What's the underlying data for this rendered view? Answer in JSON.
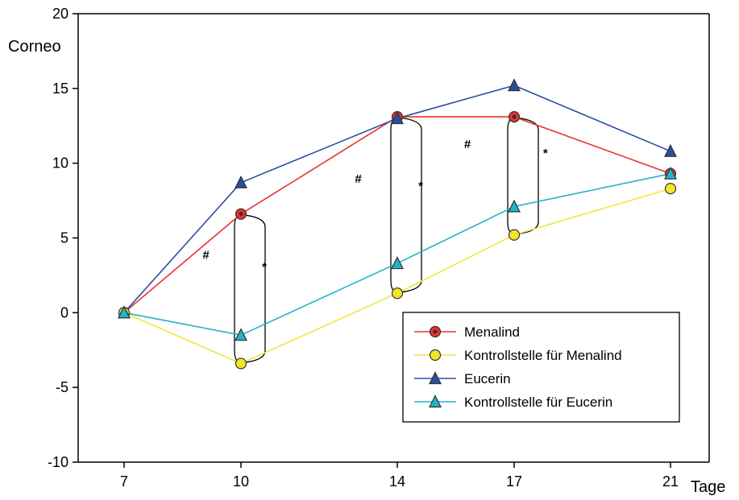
{
  "chart_data": {
    "type": "line",
    "ylabel": "Corneo",
    "xlabel": "Tage",
    "x": [
      7,
      10,
      14,
      17,
      21
    ],
    "xticks": [
      "7",
      "10",
      "14",
      "17",
      "21"
    ],
    "ylim": [
      -10,
      20
    ],
    "yticks": [
      "-10",
      "-5",
      "0",
      "5",
      "10",
      "15",
      "20"
    ],
    "grid": false,
    "legend_position": "bottom-right",
    "series": [
      {
        "name": "Menalind",
        "values": [
          0,
          6.6,
          13.1,
          13.1,
          9.3
        ],
        "color": "#e8322f",
        "marker": "circle-dot",
        "fill": "#e8322f"
      },
      {
        "name": "Kontrollstelle für Menalind",
        "values": [
          0,
          -3.4,
          1.3,
          5.2,
          8.3
        ],
        "color": "#f0e63c",
        "marker": "circle",
        "fill": "#f2e52b"
      },
      {
        "name": "Eucerin",
        "values": [
          0,
          8.7,
          13.0,
          15.2,
          10.8
        ],
        "color": "#2a4fa0",
        "marker": "triangle",
        "fill": "#2a4fa0"
      },
      {
        "name": "Kontrollstelle für Eucerin",
        "values": [
          0,
          -1.5,
          3.3,
          7.1,
          9.3
        ],
        "color": "#22b3c7",
        "marker": "triangle",
        "fill": "#22b3c7"
      }
    ],
    "annotations": [
      {
        "text": "#",
        "x": 9.1,
        "y": 3.6
      },
      {
        "text": "*",
        "x": 10.6,
        "y": 2.8
      },
      {
        "text": "#",
        "x": 13.0,
        "y": 8.7
      },
      {
        "text": "*",
        "x": 14.6,
        "y": 8.2
      },
      {
        "text": "#",
        "x": 15.8,
        "y": 11.0
      },
      {
        "text": "*",
        "x": 17.8,
        "y": 10.4
      }
    ],
    "brackets": [
      {
        "x": 10,
        "y_top": 6.6,
        "y_bottom": -3.4
      },
      {
        "x": 14,
        "y_top": 13.1,
        "y_bottom": 1.3
      },
      {
        "x": 17,
        "y_top": 13.1,
        "y_bottom": 5.2
      }
    ]
  }
}
